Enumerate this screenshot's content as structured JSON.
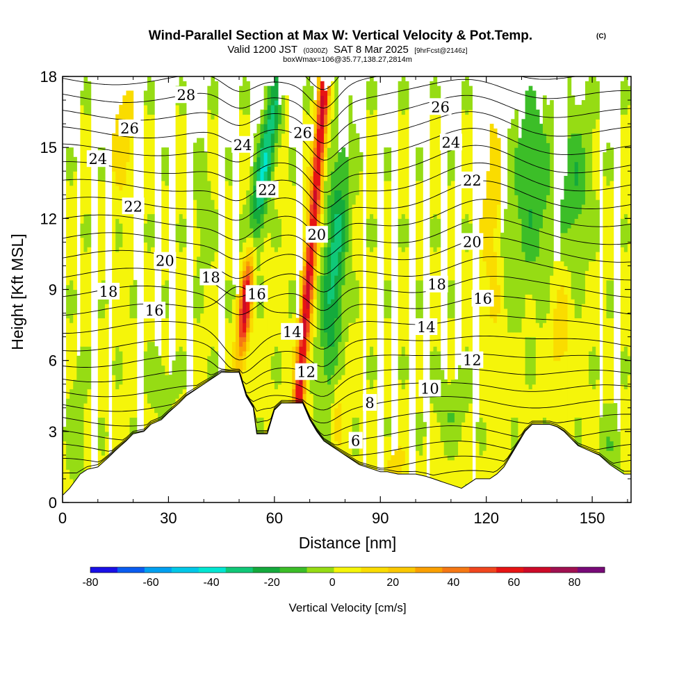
{
  "chart_data": {
    "type": "heatmap",
    "title": "Wind-Parallel Section at Max W: Vertical Velocity & Pot.Temp.",
    "copyright": "(C)",
    "subtitle": {
      "valid": "Valid 1200 JST",
      "utc": "(0300Z)",
      "date": "SAT 8 Mar 2025",
      "fcst": "[9hrFcst@2146z]"
    },
    "box_info": "boxWmax=106@35.77,138.27,2814m",
    "xlabel": "Distance [nm]",
    "ylabel": "Height [Kft MSL]",
    "xlim": [
      0,
      161
    ],
    "ylim": [
      0,
      18
    ],
    "x_ticks": [
      "0",
      "30",
      "60",
      "90",
      "120",
      "150"
    ],
    "y_ticks": [
      "0",
      "3",
      "6",
      "9",
      "12",
      "15",
      "18"
    ],
    "colorbar": {
      "label": "Vertical Velocity [cm/s]",
      "tick_labels": [
        "-80",
        "-60",
        "-40",
        "-20",
        "0",
        "20",
        "40",
        "60",
        "80"
      ],
      "min": -80,
      "max": 90,
      "colors": [
        "#1a10e6",
        "#0a5cf0",
        "#00a0f0",
        "#00c8e8",
        "#00e6d2",
        "#10c878",
        "#14aa3c",
        "#3cbe28",
        "#96dc14",
        "#f5f50a",
        "#fadc00",
        "#fac800",
        "#faa000",
        "#f57814",
        "#f0461e",
        "#e61414",
        "#cd0a28",
        "#a01050",
        "#780a78"
      ]
    },
    "velocity_field": {
      "units": "cm/s",
      "background": 3,
      "features": [
        {
          "x": 51.5,
          "y": 8.0,
          "value": 75
        },
        {
          "x": 72.0,
          "y": 13.5,
          "value": 62
        },
        {
          "x": 52.0,
          "y": 12.0,
          "value": -38
        },
        {
          "x": 79.0,
          "y": 10.0,
          "value": -32
        },
        {
          "x": 133.0,
          "y": 13.5,
          "value": -20
        }
      ]
    },
    "theta_contours": {
      "units": "C",
      "levels": [
        4,
        5,
        6,
        7,
        8,
        9,
        10,
        11,
        12,
        13,
        14,
        15,
        16,
        17,
        18,
        19,
        20,
        21,
        22,
        23,
        24,
        25,
        26,
        27,
        28,
        29
      ],
      "labels": [
        {
          "text": "28",
          "x": 35,
          "y": 17.2
        },
        {
          "text": "26",
          "x": 19,
          "y": 15.8
        },
        {
          "text": "24",
          "x": 10,
          "y": 14.5
        },
        {
          "text": "22",
          "x": 20,
          "y": 12.5
        },
        {
          "text": "20",
          "x": 29,
          "y": 10.2
        },
        {
          "text": "18",
          "x": 13,
          "y": 8.9
        },
        {
          "text": "18",
          "x": 42,
          "y": 9.5
        },
        {
          "text": "16",
          "x": 26,
          "y": 8.1
        },
        {
          "text": "24",
          "x": 51,
          "y": 15.1
        },
        {
          "text": "22",
          "x": 58,
          "y": 13.2
        },
        {
          "text": "16",
          "x": 55,
          "y": 8.8
        },
        {
          "text": "26",
          "x": 68,
          "y": 15.6
        },
        {
          "text": "20",
          "x": 72,
          "y": 11.3
        },
        {
          "text": "14",
          "x": 65,
          "y": 7.2
        },
        {
          "text": "12",
          "x": 69,
          "y": 5.5
        },
        {
          "text": "8",
          "x": 87,
          "y": 4.2
        },
        {
          "text": "6",
          "x": 83,
          "y": 2.6
        },
        {
          "text": "26",
          "x": 107,
          "y": 16.7
        },
        {
          "text": "24",
          "x": 110,
          "y": 15.2
        },
        {
          "text": "22",
          "x": 116,
          "y": 13.6
        },
        {
          "text": "20",
          "x": 116,
          "y": 11.0
        },
        {
          "text": "18",
          "x": 106,
          "y": 9.2
        },
        {
          "text": "16",
          "x": 119,
          "y": 8.6
        },
        {
          "text": "14",
          "x": 103,
          "y": 7.4
        },
        {
          "text": "12",
          "x": 116,
          "y": 6.0
        },
        {
          "text": "10",
          "x": 104,
          "y": 4.8
        }
      ]
    },
    "terrain_kft": [
      [
        0,
        0.3
      ],
      [
        2,
        0.6
      ],
      [
        5,
        1.2
      ],
      [
        7,
        1.4
      ],
      [
        10,
        1.5
      ],
      [
        13,
        1.9
      ],
      [
        15,
        2.2
      ],
      [
        18,
        2.6
      ],
      [
        20,
        2.9
      ],
      [
        23,
        3.0
      ],
      [
        25,
        3.3
      ],
      [
        28,
        3.5
      ],
      [
        30,
        3.8
      ],
      [
        33,
        4.2
      ],
      [
        35,
        4.5
      ],
      [
        38,
        4.8
      ],
      [
        40,
        5.0
      ],
      [
        43,
        5.3
      ],
      [
        45,
        5.5
      ],
      [
        48,
        5.5
      ],
      [
        50,
        5.5
      ],
      [
        52,
        4.5
      ],
      [
        54,
        4.0
      ],
      [
        55,
        2.9
      ],
      [
        58,
        2.9
      ],
      [
        60,
        3.9
      ],
      [
        62,
        4.2
      ],
      [
        64,
        4.2
      ],
      [
        66,
        4.2
      ],
      [
        68,
        4.2
      ],
      [
        70,
        3.5
      ],
      [
        72,
        3.0
      ],
      [
        74,
        2.6
      ],
      [
        76,
        2.4
      ],
      [
        78,
        2.2
      ],
      [
        80,
        2.0
      ],
      [
        82,
        1.8
      ],
      [
        84,
        1.6
      ],
      [
        86,
        1.5
      ],
      [
        88,
        1.4
      ],
      [
        90,
        1.3
      ],
      [
        92,
        1.3
      ],
      [
        95,
        1.2
      ],
      [
        98,
        1.2
      ],
      [
        100,
        1.2
      ],
      [
        103,
        1.1
      ],
      [
        105,
        1.0
      ],
      [
        107,
        0.9
      ],
      [
        109,
        0.8
      ],
      [
        111,
        0.7
      ],
      [
        113,
        0.6
      ],
      [
        115,
        0.8
      ],
      [
        117,
        1.0
      ],
      [
        119,
        1.0
      ],
      [
        121,
        1.0
      ],
      [
        123,
        1.2
      ],
      [
        125,
        1.5
      ],
      [
        127,
        2.0
      ],
      [
        129,
        2.5
      ],
      [
        131,
        3.0
      ],
      [
        133,
        3.3
      ],
      [
        136,
        3.3
      ],
      [
        138,
        3.3
      ],
      [
        140,
        3.2
      ],
      [
        142,
        3.0
      ],
      [
        144,
        2.7
      ],
      [
        146,
        2.4
      ],
      [
        149,
        2.2
      ],
      [
        152,
        2.0
      ],
      [
        155,
        1.6
      ],
      [
        157,
        1.4
      ],
      [
        159,
        1.2
      ],
      [
        161,
        1.2
      ]
    ]
  }
}
